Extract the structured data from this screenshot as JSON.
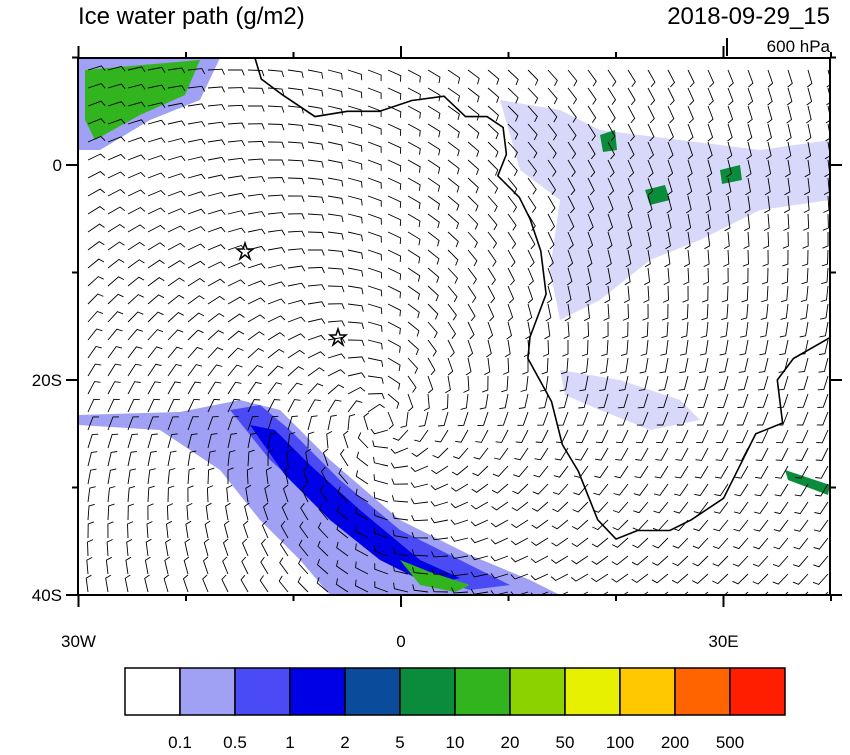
{
  "title": "Ice water path (g/m2)",
  "date": "2018-09-29_15",
  "level": "600 hPa",
  "axes": {
    "y_labels": [
      "0",
      "20S",
      "40S"
    ],
    "x_labels": [
      "30W",
      "0",
      "30E"
    ]
  },
  "colorbar": {
    "colors": [
      "#ffffff",
      "#a0a0f5",
      "#4b4bf5",
      "#0000e6",
      "#0a4b9b",
      "#0a8c3c",
      "#32b41e",
      "#8cd200",
      "#e6f000",
      "#ffc800",
      "#ff6400",
      "#ff1e00"
    ],
    "labels": [
      "0.1",
      "0.5",
      "1",
      "2",
      "5",
      "10",
      "20",
      "50",
      "100",
      "200",
      "500"
    ]
  }
}
